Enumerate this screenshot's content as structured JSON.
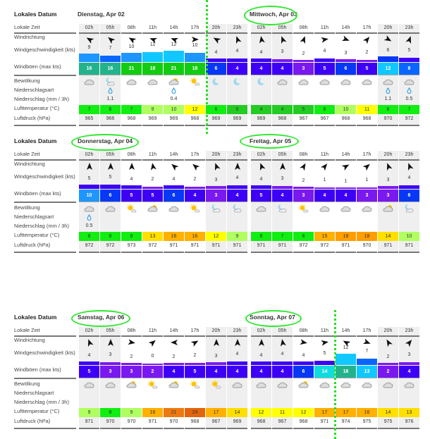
{
  "labels": {
    "title": "Lokales Datum",
    "time": "Lokale Zeit",
    "dir": "Windrichtung",
    "speed": "Windgeschwindigkeit (kts)",
    "gust": "Windböen (max kts)",
    "cloud": "Bewölkung",
    "ptype": "Niederschlagsart",
    "precip": "Niederschlag (mm / 3h)",
    "temp": "Lufttemperatur (°C)",
    "pressure": "Luftdruck (hPa)"
  },
  "times": [
    "02h",
    "05h",
    "08h",
    "11h",
    "14h",
    "17h",
    "20h",
    "23h"
  ],
  "days": [
    {
      "title": "Dienstag, Apr 02",
      "dir": [
        300,
        310,
        300,
        290,
        290,
        90,
        300,
        340
      ],
      "speed": [
        "9",
        "7",
        "10",
        "11",
        "12",
        "10",
        "4",
        "4"
      ],
      "gust": [
        "16",
        "16",
        "21",
        "18",
        "21",
        "18",
        "6",
        "4"
      ],
      "cloud": [
        "c",
        "mc",
        "c",
        "c",
        "sc",
        "s",
        "m",
        "m"
      ],
      "precip": [
        "",
        "1.1",
        "",
        "",
        "0.4",
        "",
        "",
        ""
      ],
      "temp": [
        "7",
        "6",
        "7",
        "9",
        "10",
        "12",
        "6",
        "5"
      ],
      "pressure": [
        "965",
        "966",
        "968",
        "969",
        "969",
        "968",
        "969",
        "969"
      ]
    },
    {
      "title": "Mittwoch, Apr 03",
      "dir": [
        350,
        340,
        20,
        80,
        110,
        40,
        120,
        20
      ],
      "speed": [
        "4",
        "3",
        "2",
        "4",
        "3",
        "2",
        "6",
        "5"
      ],
      "gust": [
        "4",
        "4",
        "3",
        "5",
        "6",
        "5",
        "12",
        "8"
      ],
      "cloud": [
        "m",
        "c",
        "c",
        "c",
        "c",
        "c",
        "c",
        "c"
      ],
      "precip": [
        "",
        "",
        "",
        "",
        "",
        "",
        "1.1",
        "0.5"
      ],
      "temp": [
        "4",
        "4",
        "5",
        "6",
        "10",
        "11",
        "6",
        "7"
      ],
      "pressure": [
        "969",
        "968",
        "967",
        "967",
        "968",
        "968",
        "970",
        "972"
      ]
    },
    {
      "title": "Donnerstag, Apr 04",
      "dir": [
        0,
        0,
        0,
        350,
        310,
        310,
        340,
        0
      ],
      "speed": [
        "5",
        "5",
        "4",
        "2",
        "4",
        "2",
        "3",
        "4"
      ],
      "gust": [
        "10",
        "6",
        "5",
        "5",
        "6",
        "4",
        "3",
        "4"
      ],
      "cloud": [
        "c",
        "c",
        "s",
        "sc",
        "c",
        "s",
        "mc",
        "mc"
      ],
      "precip": [
        "0.5",
        "",
        "",
        "",
        "",
        "",
        "",
        ""
      ],
      "temp": [
        "8",
        "8",
        "8",
        "13",
        "16",
        "16",
        "12",
        "9"
      ],
      "pressure": [
        "972",
        "972",
        "973",
        "972",
        "971",
        "971",
        "971",
        "971"
      ]
    },
    {
      "title": "Freitag, Apr 05",
      "dir": [
        340,
        0,
        30,
        40,
        60,
        50,
        340,
        340
      ],
      "speed": [
        "4",
        "3",
        "2",
        "1",
        "1",
        "1",
        "3",
        "4"
      ],
      "gust": [
        "5",
        "4",
        "3",
        "4",
        "4",
        "3",
        "3",
        "6"
      ],
      "cloud": [
        "c",
        "mc",
        "s",
        "c",
        "c",
        "c",
        "sc",
        "mc"
      ],
      "precip": [
        "",
        "",
        "",
        "",
        "",
        "",
        "",
        ""
      ],
      "temp": [
        "8",
        "7",
        "8",
        "15",
        "18",
        "18",
        "14",
        "10"
      ],
      "pressure": [
        "971",
        "971",
        "972",
        "972",
        "971",
        "970",
        "971",
        "971"
      ]
    },
    {
      "title": "Samstag, Apr 06",
      "dir": [
        340,
        0,
        100,
        50,
        270,
        60,
        0,
        0
      ],
      "speed": [
        "4",
        "3",
        "2",
        "0",
        "2",
        "2",
        "3",
        "4"
      ],
      "gust": [
        "5",
        "3",
        "3",
        "2",
        "4",
        "5",
        "4",
        "4"
      ],
      "cloud": [
        "c",
        "c",
        "sc",
        "s",
        "sc",
        "s",
        "s",
        "c"
      ],
      "precip": [
        "",
        "",
        "",
        "",
        "",
        "",
        "",
        ""
      ],
      "temp": [
        "9",
        "8",
        "9",
        "16",
        "21",
        "24",
        "17",
        "14"
      ],
      "pressure": [
        "971",
        "970",
        "970",
        "971",
        "970",
        "968",
        "967",
        "969"
      ]
    },
    {
      "title": "Sonntag, Apr 07",
      "dir": [
        0,
        350,
        100,
        80,
        300,
        110,
        330,
        40
      ],
      "speed": [
        "4",
        "4",
        "4",
        "5",
        "12",
        "7",
        "2",
        "3"
      ],
      "gust": [
        "4",
        "4",
        "6",
        "14",
        "16",
        "13",
        "2",
        "4"
      ],
      "cloud": [
        "c",
        "c",
        "sc",
        "c",
        "c",
        "c",
        "c",
        "c"
      ],
      "precip": [
        "",
        "",
        "",
        "",
        "",
        "",
        "",
        ""
      ],
      "temp": [
        "12",
        "11",
        "12",
        "17",
        "17",
        "16",
        "14",
        "13"
      ],
      "pressure": [
        "968",
        "967",
        "968",
        "971",
        "974",
        "975",
        "975",
        "976"
      ]
    }
  ]
}
